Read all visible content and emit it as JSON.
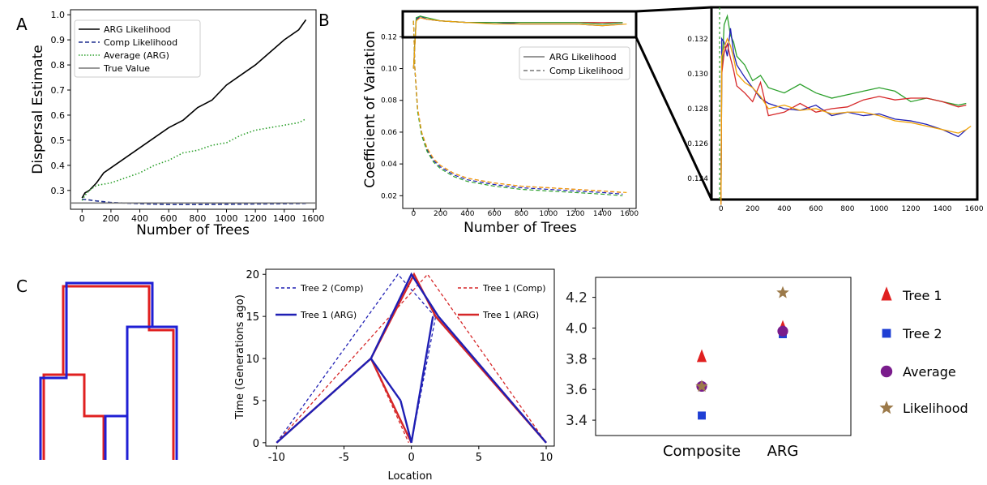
{
  "panel_labels": [
    "A",
    "B",
    "C"
  ],
  "chart_data": [
    {
      "id": "A",
      "type": "line",
      "xlabel": "Number of Trees",
      "ylabel": "Dispersal Estimate",
      "xlim": [
        -80,
        1620
      ],
      "ylim": [
        0.225,
        1.02
      ],
      "xticks": [
        "0",
        "200",
        "400",
        "600",
        "800",
        "1000",
        "1200",
        "1400",
        "1600"
      ],
      "yticks": [
        "0.3",
        "0.4",
        "0.5",
        "0.6",
        "0.7",
        "0.8",
        "0.9",
        "1.0"
      ],
      "legend_position": "top-left",
      "series": [
        {
          "name": "ARG Likelihood",
          "color": "#000000",
          "style": "solid",
          "x": [
            0,
            20,
            50,
            100,
            150,
            200,
            300,
            400,
            500,
            600,
            700,
            800,
            900,
            1000,
            1100,
            1200,
            1300,
            1400,
            1500,
            1550
          ],
          "y": [
            0.27,
            0.29,
            0.3,
            0.33,
            0.37,
            0.39,
            0.43,
            0.47,
            0.51,
            0.55,
            0.58,
            0.63,
            0.66,
            0.72,
            0.76,
            0.8,
            0.85,
            0.9,
            0.94,
            0.98
          ]
        },
        {
          "name": "Comp Likelihood",
          "color": "#1f2f8f",
          "style": "dashed",
          "x": [
            0,
            50,
            100,
            200,
            400,
            600,
            800,
            1000,
            1200,
            1400,
            1550
          ],
          "y": [
            0.265,
            0.262,
            0.258,
            0.252,
            0.247,
            0.244,
            0.244,
            0.245,
            0.246,
            0.247,
            0.248
          ]
        },
        {
          "name": "Average (ARG)",
          "color": "#2ca02c",
          "style": "dotted",
          "x": [
            0,
            20,
            50,
            100,
            200,
            300,
            400,
            500,
            600,
            700,
            800,
            900,
            1000,
            1100,
            1200,
            1300,
            1400,
            1500,
            1550
          ],
          "y": [
            0.26,
            0.28,
            0.3,
            0.32,
            0.33,
            0.35,
            0.37,
            0.4,
            0.42,
            0.45,
            0.46,
            0.48,
            0.49,
            0.52,
            0.54,
            0.55,
            0.56,
            0.57,
            0.585
          ]
        },
        {
          "name": "True Value",
          "color": "#777777",
          "style": "solid",
          "x": [
            -80,
            1620
          ],
          "y": [
            0.25,
            0.25
          ]
        }
      ]
    },
    {
      "id": "B",
      "type": "line",
      "xlabel": "Number of Trees",
      "ylabel": "Coefficient of Variation",
      "xlim": [
        -80,
        1650
      ],
      "ylim": [
        0.012,
        0.136
      ],
      "xticks": [
        "0",
        "200",
        "400",
        "600",
        "800",
        "1000",
        "1200",
        "1400",
        "1600"
      ],
      "yticks": [
        "0.02",
        "0.04",
        "0.06",
        "0.08",
        "0.10",
        "0.12"
      ],
      "legend_position": "upper-right",
      "legend": [
        {
          "name": "ARG Likelihood",
          "style": "solid",
          "color": "#777777"
        },
        {
          "name": "Comp Likelihood",
          "style": "dashed",
          "color": "#777777"
        }
      ],
      "series": [
        {
          "color": "#d62728",
          "style": "solid",
          "x": [
            0,
            20,
            50,
            100,
            200,
            400,
            600,
            800,
            1000,
            1200,
            1400,
            1550
          ],
          "y": [
            0.1,
            0.131,
            0.132,
            0.131,
            0.13,
            0.129,
            0.129,
            0.129,
            0.129,
            0.129,
            0.129,
            0.129
          ]
        },
        {
          "color": "#1f1fb4",
          "style": "solid",
          "x": [
            0,
            20,
            50,
            100,
            200,
            400,
            600,
            800,
            1000,
            1200,
            1400,
            1550
          ],
          "y": [
            0.1,
            0.131,
            0.133,
            0.131,
            0.13,
            0.129,
            0.129,
            0.128,
            0.128,
            0.128,
            0.127,
            0.128
          ]
        },
        {
          "color": "#2ca02c",
          "style": "solid",
          "x": [
            0,
            20,
            50,
            100,
            200,
            400,
            600,
            800,
            1000,
            1200,
            1400,
            1550
          ],
          "y": [
            0.1,
            0.132,
            0.133,
            0.132,
            0.13,
            0.129,
            0.129,
            0.129,
            0.129,
            0.129,
            0.128,
            0.129
          ]
        },
        {
          "color": "#f0a30a",
          "style": "solid",
          "x": [
            0,
            20,
            50,
            100,
            200,
            400,
            600,
            800,
            1000,
            1200,
            1400,
            1580
          ],
          "y": [
            0.1,
            0.13,
            0.132,
            0.131,
            0.13,
            0.129,
            0.128,
            0.128,
            0.128,
            0.128,
            0.127,
            0.128
          ]
        },
        {
          "color": "#d62728",
          "style": "dashed",
          "x": [
            0,
            10,
            30,
            60,
            100,
            150,
            200,
            300,
            400,
            600,
            800,
            1000,
            1200,
            1400,
            1550
          ],
          "y": [
            0.13,
            0.1,
            0.075,
            0.06,
            0.05,
            0.043,
            0.039,
            0.034,
            0.031,
            0.028,
            0.026,
            0.025,
            0.024,
            0.023,
            0.022
          ]
        },
        {
          "color": "#1f1fb4",
          "style": "dashed",
          "x": [
            0,
            10,
            30,
            60,
            100,
            150,
            200,
            300,
            400,
            600,
            800,
            1000,
            1200,
            1400,
            1550
          ],
          "y": [
            0.13,
            0.1,
            0.074,
            0.059,
            0.049,
            0.042,
            0.038,
            0.033,
            0.03,
            0.027,
            0.025,
            0.024,
            0.023,
            0.022,
            0.021
          ]
        },
        {
          "color": "#2ca02c",
          "style": "dashed",
          "x": [
            0,
            10,
            30,
            60,
            100,
            150,
            200,
            300,
            400,
            600,
            800,
            1000,
            1200,
            1400,
            1550
          ],
          "y": [
            0.13,
            0.1,
            0.073,
            0.058,
            0.048,
            0.041,
            0.037,
            0.032,
            0.029,
            0.026,
            0.024,
            0.023,
            0.022,
            0.021,
            0.02
          ]
        },
        {
          "color": "#f0a30a",
          "style": "dashed",
          "x": [
            0,
            10,
            30,
            60,
            100,
            150,
            200,
            300,
            400,
            600,
            800,
            1000,
            1200,
            1400,
            1580
          ],
          "y": [
            0.13,
            0.1,
            0.075,
            0.06,
            0.05,
            0.043,
            0.039,
            0.034,
            0.031,
            0.028,
            0.026,
            0.025,
            0.024,
            0.023,
            0.022
          ]
        }
      ]
    },
    {
      "id": "B-inset",
      "type": "line",
      "xlim": [
        -60,
        1620
      ],
      "ylim": [
        0.1228,
        0.1338
      ],
      "xticks": [
        "0",
        "200",
        "400",
        "600",
        "800",
        "1000",
        "1200",
        "1400",
        "1600"
      ],
      "yticks": [
        "0.124",
        "0.126",
        "0.128",
        "0.130",
        "0.132"
      ],
      "series": [
        {
          "color": "#2ca02c",
          "x": [
            0,
            5,
            20,
            40,
            60,
            80,
            100,
            150,
            200,
            250,
            300,
            400,
            500,
            600,
            700,
            800,
            900,
            1000,
            1100,
            1200,
            1300,
            1400,
            1500,
            1550
          ],
          "y": [
            0.1225,
            0.13,
            0.1328,
            0.1333,
            0.1322,
            0.1318,
            0.131,
            0.1305,
            0.1296,
            0.1299,
            0.1292,
            0.1289,
            0.1294,
            0.1289,
            0.1286,
            0.1288,
            0.129,
            0.1292,
            0.129,
            0.1284,
            0.1286,
            0.1284,
            0.1282,
            0.1283
          ]
        },
        {
          "color": "#1f1fb4",
          "x": [
            0,
            5,
            20,
            40,
            60,
            80,
            100,
            150,
            200,
            250,
            300,
            400,
            500,
            600,
            700,
            800,
            900,
            1000,
            1100,
            1200,
            1300,
            1400,
            1500,
            1550
          ],
          "y": [
            0.1225,
            0.132,
            0.1318,
            0.131,
            0.1326,
            0.1312,
            0.1305,
            0.1298,
            0.1292,
            0.1286,
            0.1283,
            0.128,
            0.1279,
            0.1282,
            0.1276,
            0.1278,
            0.1276,
            0.1277,
            0.1274,
            0.1273,
            0.1271,
            0.1268,
            0.1264,
            0.1268
          ]
        },
        {
          "color": "#d62728",
          "x": [
            0,
            5,
            20,
            40,
            60,
            80,
            100,
            150,
            200,
            250,
            300,
            400,
            500,
            600,
            700,
            800,
            900,
            1000,
            1100,
            1200,
            1300,
            1400,
            1500,
            1550
          ],
          "y": [
            0.1225,
            0.13,
            0.1312,
            0.1317,
            0.1309,
            0.1302,
            0.1293,
            0.1289,
            0.1284,
            0.1295,
            0.1276,
            0.1278,
            0.1283,
            0.1278,
            0.128,
            0.1281,
            0.1285,
            0.1287,
            0.1285,
            0.1286,
            0.1286,
            0.1284,
            0.1281,
            0.1282
          ]
        },
        {
          "color": "#f0a30a",
          "x": [
            0,
            5,
            20,
            40,
            60,
            80,
            100,
            150,
            200,
            250,
            300,
            400,
            500,
            600,
            700,
            800,
            900,
            1000,
            1100,
            1200,
            1300,
            1400,
            1500,
            1550,
            1580
          ],
          "y": [
            0.1225,
            0.131,
            0.1315,
            0.132,
            0.1316,
            0.1309,
            0.13,
            0.1295,
            0.1292,
            0.1287,
            0.128,
            0.1282,
            0.1279,
            0.128,
            0.1277,
            0.1278,
            0.1278,
            0.1276,
            0.1273,
            0.1272,
            0.127,
            0.1268,
            0.1266,
            0.1268,
            0.127
          ]
        }
      ]
    },
    {
      "id": "C-middle",
      "type": "line",
      "xlabel": "Location",
      "ylabel": "Time (Generations ago)",
      "xlim": [
        -10.8,
        10.6
      ],
      "ylim": [
        -0.4,
        20.6
      ],
      "xticks": [
        "-10",
        "-5",
        "0",
        "5",
        "10"
      ],
      "xtick_values": [
        -10,
        -5,
        0,
        5,
        10
      ],
      "yticks": [
        "0",
        "5",
        "10",
        "15",
        "20"
      ],
      "ytick_values": [
        0,
        5,
        10,
        15,
        20
      ],
      "legend": [
        {
          "name": "Tree 2 (Comp)",
          "color": "#1f1fb4",
          "style": "dashed",
          "position": "top-left"
        },
        {
          "name": "Tree 1 (Comp)",
          "color": "#d62728",
          "style": "dashed",
          "position": "top-right"
        },
        {
          "name": "Tree 1 (ARG)",
          "color": "#1f1fb4",
          "style": "solid",
          "position": "mid-left"
        },
        {
          "name": "Tree 1 (ARG)",
          "color": "#d62728",
          "style": "solid",
          "position": "mid-right"
        }
      ],
      "series": [
        {
          "color": "#1f1fb4",
          "style": "dashed",
          "x": [
            -10,
            -1,
            10
          ],
          "y": [
            0,
            20,
            0
          ]
        },
        {
          "color": "#1f1fb4",
          "style": "dashed",
          "x": [
            0,
            1.8
          ],
          "y": [
            0,
            15
          ]
        },
        {
          "color": "#d62728",
          "style": "dashed",
          "x": [
            -10,
            1.2,
            10
          ],
          "y": [
            0,
            20,
            0
          ]
        },
        {
          "color": "#d62728",
          "style": "dashed",
          "x": [
            -3,
            -0.2
          ],
          "y": [
            10,
            0
          ]
        },
        {
          "color": "#d62728",
          "style": "solid",
          "x": [
            -10,
            -3,
            0.2,
            1.8,
            10
          ],
          "y": [
            0,
            10,
            20,
            15,
            0
          ]
        },
        {
          "color": "#d62728",
          "style": "solid",
          "x": [
            -3,
            0
          ],
          "y": [
            10,
            0
          ]
        },
        {
          "color": "#1f1fb4",
          "style": "solid",
          "x": [
            -10,
            -3,
            0,
            2,
            10
          ],
          "y": [
            0,
            10,
            20,
            15,
            0
          ]
        },
        {
          "color": "#1f1fb4",
          "style": "solid",
          "x": [
            -0.8,
            0,
            1.6
          ],
          "y": [
            5,
            0,
            15
          ]
        },
        {
          "color": "#1f1fb4",
          "style": "solid",
          "x": [
            -0.8,
            -3
          ],
          "y": [
            5,
            10
          ]
        }
      ]
    },
    {
      "id": "C-right",
      "type": "scatter",
      "categories": [
        "Composite",
        "ARG"
      ],
      "ylim": [
        3.3,
        4.33
      ],
      "yticks": [
        "3.4",
        "3.6",
        "3.8",
        "4.0",
        "4.2"
      ],
      "ytick_values": [
        3.4,
        3.6,
        3.8,
        4.0,
        4.2
      ],
      "legend_position": "right",
      "series": [
        {
          "name": "Tree 1",
          "marker": "triangle",
          "color": "#e02020",
          "values": [
            3.81,
            4.0
          ]
        },
        {
          "name": "Tree 2",
          "marker": "square",
          "color": "#1f3fd4",
          "values": [
            3.43,
            3.96
          ]
        },
        {
          "name": "Average",
          "marker": "circle",
          "color": "#7a1c8c",
          "values": [
            3.62,
            3.98
          ]
        },
        {
          "name": "Likelihood",
          "marker": "star",
          "color": "#9c7a4a",
          "values": [
            3.62,
            4.23
          ]
        }
      ]
    }
  ]
}
